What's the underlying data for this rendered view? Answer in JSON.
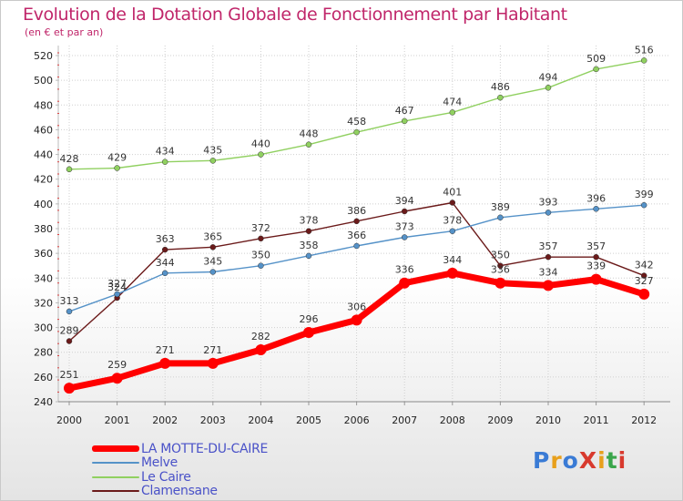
{
  "title": "Evolution de la Dotation Globale de Fonctionnement par Habitant",
  "subtitle": "(en € et par an)",
  "logo": {
    "text": "ProXiti",
    "letter_colors": [
      "#3a7bd5",
      "#e8a01c",
      "#3a7bd5",
      "#d83a2e",
      "#e8a01c",
      "#3aa54b",
      "#d83a2e"
    ]
  },
  "chart_data": {
    "type": "line",
    "x": [
      "2000",
      "2001",
      "2002",
      "2003",
      "2004",
      "2005",
      "2006",
      "2007",
      "2008",
      "2009",
      "2010",
      "2011",
      "2012"
    ],
    "ylim": [
      240,
      520
    ],
    "yticks": [
      240,
      260,
      280,
      300,
      320,
      340,
      360,
      380,
      400,
      420,
      440,
      460,
      480,
      500,
      520
    ],
    "grid": true,
    "legend_position": "bottom-left",
    "series": [
      {
        "name": "LA MOTTE-DU-CAIRE",
        "color": "#ff0000",
        "values": [
          251,
          259,
          271,
          271,
          282,
          296,
          306,
          336,
          344,
          336,
          334,
          339,
          327
        ]
      },
      {
        "name": "Melve",
        "color": "#5592c8",
        "values": [
          313,
          327,
          344,
          345,
          350,
          358,
          366,
          373,
          378,
          389,
          393,
          396,
          399
        ]
      },
      {
        "name": "Le Caire",
        "color": "#90d060",
        "values": [
          428,
          429,
          434,
          435,
          440,
          448,
          458,
          467,
          474,
          486,
          494,
          509,
          516
        ]
      },
      {
        "name": "Clamensane",
        "color": "#6b1a1a",
        "values": [
          289,
          324,
          363,
          365,
          372,
          378,
          386,
          394,
          401,
          350,
          357,
          357,
          342
        ]
      }
    ]
  }
}
